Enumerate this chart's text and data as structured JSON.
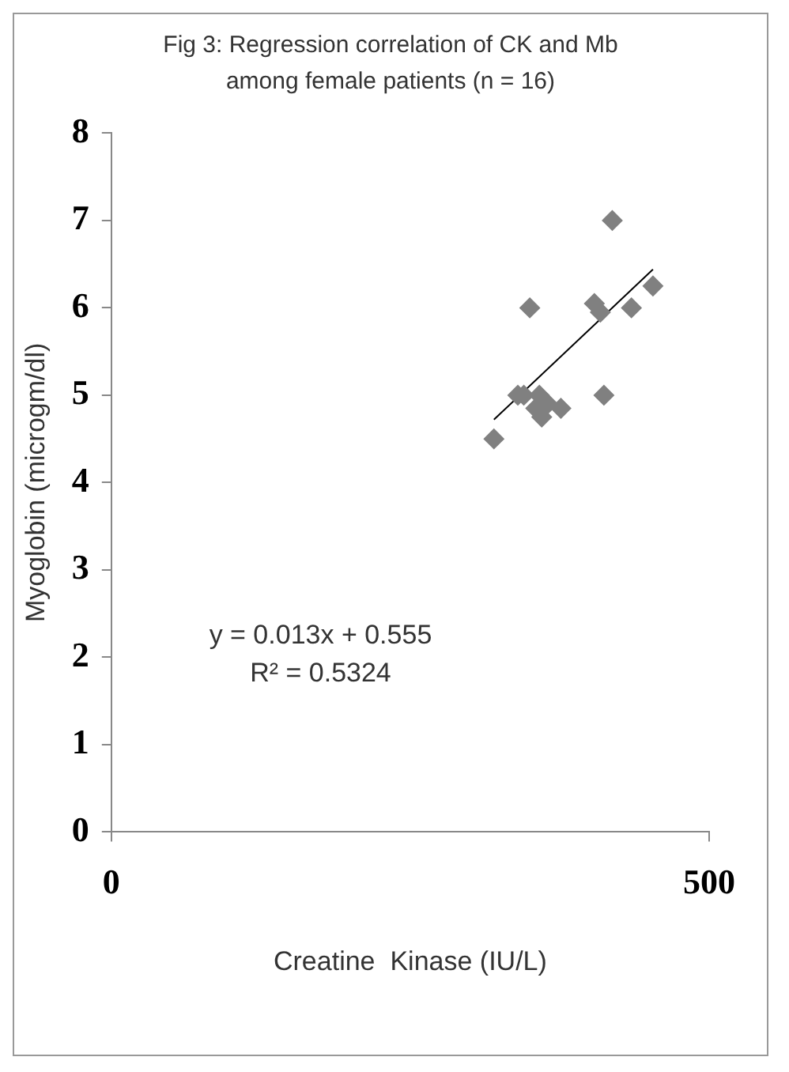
{
  "chart_data": {
    "type": "scatter",
    "title": "Fig 3: Regression correlation of CK and Mb among female patients (n = 16)",
    "xlabel": "Creatine  Kinase (IU/L)",
    "ylabel": "Myoglobin (microgm/dl)",
    "xlim": [
      0,
      500
    ],
    "xticks": [
      0,
      500
    ],
    "ylim": [
      0,
      8
    ],
    "yticks": [
      0,
      1,
      2,
      3,
      4,
      5,
      6,
      7,
      8
    ],
    "grid": false,
    "legend": false,
    "marker": "diamond",
    "series": [
      {
        "color": "#808080",
        "x": [
          320,
          340,
          345,
          350,
          355,
          358,
          360,
          365,
          376,
          404,
          409,
          412,
          419,
          435,
          453
        ],
        "values": [
          4.5,
          5.0,
          5.0,
          6.0,
          4.85,
          5.0,
          4.75,
          4.9,
          4.85,
          6.05,
          5.95,
          5.0,
          7.0,
          6.0,
          6.25
        ]
      },
      {
        "type": "line",
        "color": "#000000",
        "marker": "none",
        "x": [
          320,
          453
        ],
        "values": [
          4.72,
          6.44
        ]
      }
    ],
    "annotations": [
      "y = 0.013x + 0.555",
      "R² = 0.5324"
    ]
  }
}
